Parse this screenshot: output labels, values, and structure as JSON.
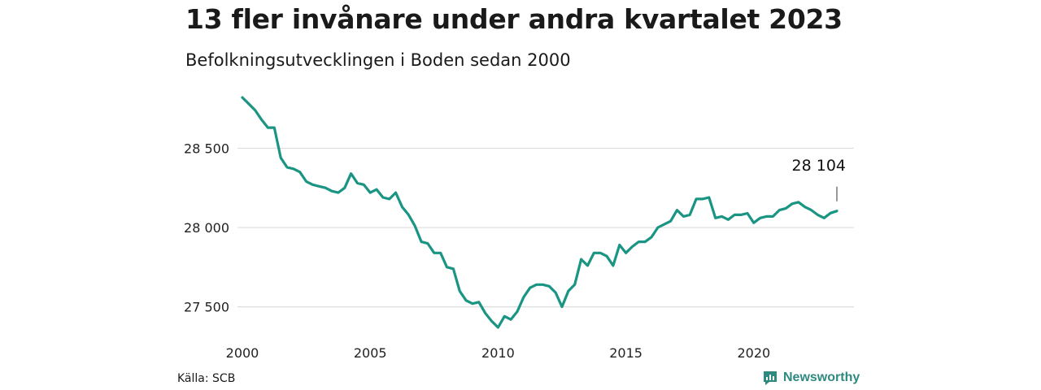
{
  "header": {
    "title": "13 fler invånare under andra kvartalet 2023",
    "subtitle": "Befolkningsutvecklingen i Boden sedan 2000"
  },
  "footer": {
    "source": "Källa: SCB",
    "brand": "Newsworthy",
    "brand_icon": "newsworthy-logo-icon"
  },
  "colors": {
    "line": "#1a9584",
    "grid": "#dddddd",
    "brand": "#2e8a80"
  },
  "chart_data": {
    "type": "line",
    "title": "13 fler invånare under andra kvartalet 2023",
    "subtitle": "Befolkningsutvecklingen i Boden sedan 2000",
    "xlabel": "",
    "ylabel": "",
    "x_start": 2000.0,
    "x_step": 0.25,
    "xlim": [
      2000,
      2023.25
    ],
    "ylim": [
      27370,
      28820
    ],
    "y_ticks": [
      27500,
      28000,
      28500
    ],
    "y_tick_labels": [
      "27 500",
      "28 000",
      "28 500"
    ],
    "x_ticks": [
      2000,
      2005,
      2010,
      2015,
      2020
    ],
    "x_tick_labels": [
      "2000",
      "2005",
      "2010",
      "2015",
      "2020"
    ],
    "grid": true,
    "annotation": {
      "label": "28 104",
      "value": 28104
    },
    "series": [
      {
        "values": [
          28820,
          28780,
          28740,
          28680,
          28630,
          28630,
          28440,
          28380,
          28370,
          28350,
          28290,
          28270,
          28260,
          28250,
          28230,
          28220,
          28250,
          28340,
          28280,
          28270,
          28220,
          28240,
          28190,
          28180,
          28220,
          28130,
          28080,
          28010,
          27910,
          27900,
          27840,
          27840,
          27750,
          27740,
          27600,
          27540,
          27520,
          27530,
          27460,
          27410,
          27370,
          27440,
          27420,
          27470,
          27560,
          27620,
          27640,
          27640,
          27630,
          27590,
          27500,
          27600,
          27640,
          27800,
          27760,
          27840,
          27840,
          27820,
          27760,
          27890,
          27840,
          27880,
          27910,
          27910,
          27940,
          28000,
          28020,
          28040,
          28110,
          28070,
          28080,
          28180,
          28180,
          28190,
          28060,
          28070,
          28050,
          28080,
          28080,
          28090,
          28030,
          28060,
          28070,
          28070,
          28110,
          28120,
          28150,
          28160,
          28130,
          28110,
          28080,
          28060,
          28091,
          28104
        ]
      }
    ]
  }
}
